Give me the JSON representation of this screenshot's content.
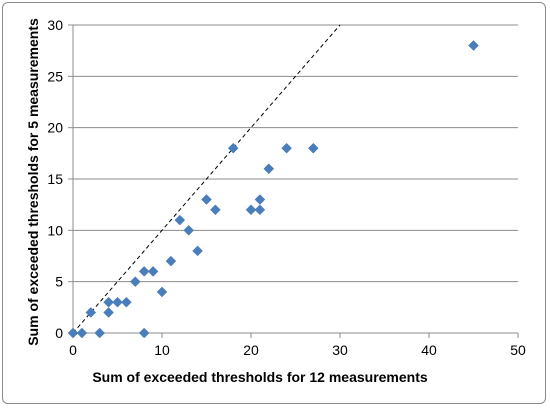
{
  "chart_data": {
    "type": "scatter",
    "title": "",
    "xlabel": "Sum of exceeded thresholds for 12 measurements",
    "ylabel": "Sum of exceeded thresholds for 5 measurements",
    "xlim": [
      0,
      50
    ],
    "ylim": [
      0,
      30
    ],
    "x_ticks": [
      "0",
      "10",
      "20",
      "30",
      "40",
      "50"
    ],
    "y_ticks": [
      "0",
      "5",
      "10",
      "15",
      "20",
      "25",
      "30"
    ],
    "grid": "horizontal",
    "legend": "none",
    "marker_color": "#4a7ebb",
    "reference_line": {
      "style": "dashed",
      "from": [
        0,
        0
      ],
      "to": [
        30,
        30
      ]
    },
    "series": [
      {
        "points": [
          [
            0,
            0
          ],
          [
            1,
            0
          ],
          [
            2,
            2
          ],
          [
            3,
            0
          ],
          [
            4,
            2
          ],
          [
            4,
            3
          ],
          [
            5,
            3
          ],
          [
            6,
            3
          ],
          [
            7,
            5
          ],
          [
            8,
            6
          ],
          [
            8,
            0
          ],
          [
            9,
            6
          ],
          [
            10,
            4
          ],
          [
            11,
            7
          ],
          [
            12,
            11
          ],
          [
            13,
            10
          ],
          [
            14,
            8
          ],
          [
            15,
            13
          ],
          [
            16,
            12
          ],
          [
            18,
            18
          ],
          [
            20,
            12
          ],
          [
            21,
            13
          ],
          [
            21,
            12
          ],
          [
            22,
            16
          ],
          [
            24,
            18
          ],
          [
            27,
            18
          ],
          [
            45,
            28
          ]
        ]
      }
    ]
  }
}
